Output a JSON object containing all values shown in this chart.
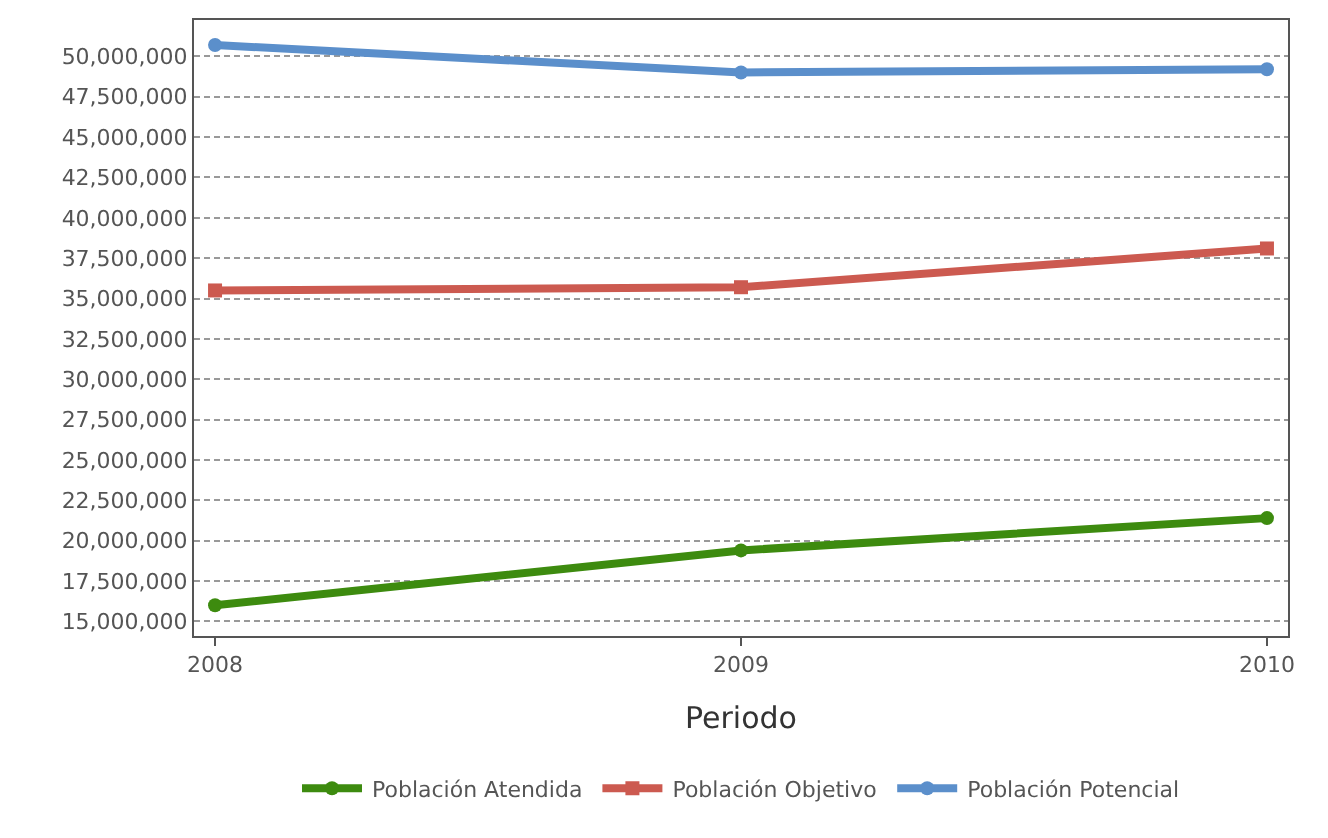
{
  "chart_data": {
    "type": "line",
    "xlabel": "Periodo",
    "x": [
      2008,
      2009,
      2010
    ],
    "xlim": [
      2007.96,
      2010.04
    ],
    "xticks": [
      2008,
      2009,
      2010
    ],
    "ylim": [
      14100000,
      52250000
    ],
    "yticks": [
      {
        "value": 15000000,
        "label": "15,000,000"
      },
      {
        "value": 17500000,
        "label": "17,500,000"
      },
      {
        "value": 20000000,
        "label": "20,000,000"
      },
      {
        "value": 22500000,
        "label": "22,500,000"
      },
      {
        "value": 25000000,
        "label": "25,000,000"
      },
      {
        "value": 27500000,
        "label": "27,500,000"
      },
      {
        "value": 30000000,
        "label": "30,000,000"
      },
      {
        "value": 32500000,
        "label": "32,500,000"
      },
      {
        "value": 35000000,
        "label": "35,000,000"
      },
      {
        "value": 37500000,
        "label": "37,500,000"
      },
      {
        "value": 40000000,
        "label": "40,000,000"
      },
      {
        "value": 42500000,
        "label": "42,500,000"
      },
      {
        "value": 45000000,
        "label": "45,000,000"
      },
      {
        "value": 47500000,
        "label": "47,500,000"
      },
      {
        "value": 50000000,
        "label": "50,000,000"
      }
    ],
    "grid": "y",
    "legend": "bottom",
    "line_style": "solid",
    "series": [
      {
        "name": "Población Atendida",
        "color": "#3d8b0f",
        "marker": "circle",
        "values": [
          16000000,
          19400000,
          21400000
        ]
      },
      {
        "name": "Población Objetivo",
        "color": "#cc5a50",
        "marker": "square",
        "values": [
          35500000,
          35700000,
          38100000
        ]
      },
      {
        "name": "Población Potencial",
        "color": "#5b8fcb",
        "marker": "circle",
        "values": [
          50700000,
          49000000,
          49200000
        ]
      }
    ]
  }
}
